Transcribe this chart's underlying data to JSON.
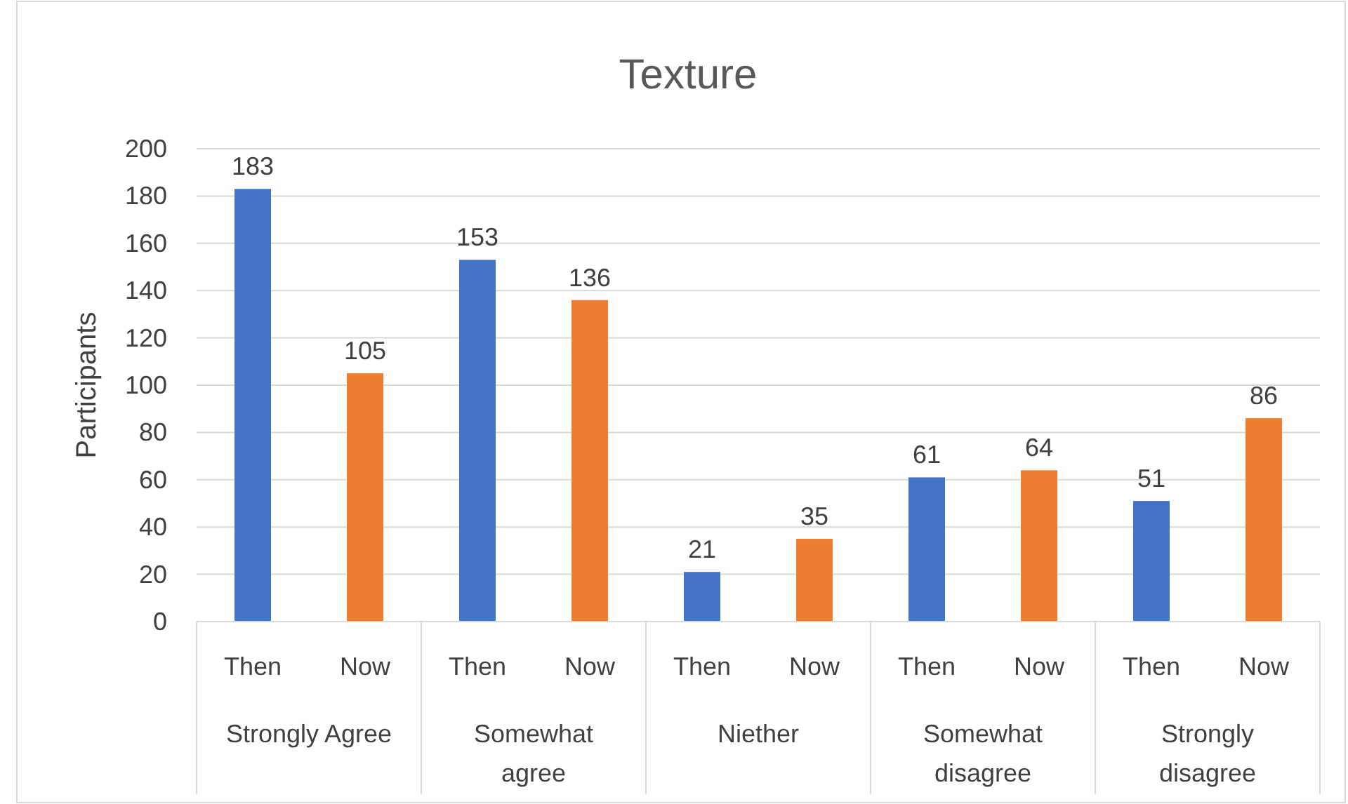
{
  "chart_data": {
    "type": "bar",
    "title": "Texture",
    "ylabel": "Participants",
    "categories": [
      "Then",
      "Now",
      "Then",
      "Now",
      "Then",
      "Now",
      "Then",
      "Now",
      "Then",
      "Now"
    ],
    "values": [
      183,
      105,
      153,
      136,
      21,
      35,
      61,
      64,
      51,
      86
    ],
    "colors": [
      "#4472c4",
      "#ed7d31",
      "#4472c4",
      "#ed7d31",
      "#4472c4",
      "#ed7d31",
      "#4472c4",
      "#ed7d31",
      "#4472c4",
      "#ed7d31"
    ],
    "annotations": [
      "Strongly Agree",
      "Somewhat agree",
      "Niether",
      "Somewhat disagree",
      "Strongly disagree"
    ],
    "ylim": [
      0,
      200
    ],
    "yticks": [
      0,
      20,
      40,
      60,
      80,
      100,
      120,
      140,
      160,
      180,
      200
    ],
    "grid": "y",
    "data_labels": true
  }
}
